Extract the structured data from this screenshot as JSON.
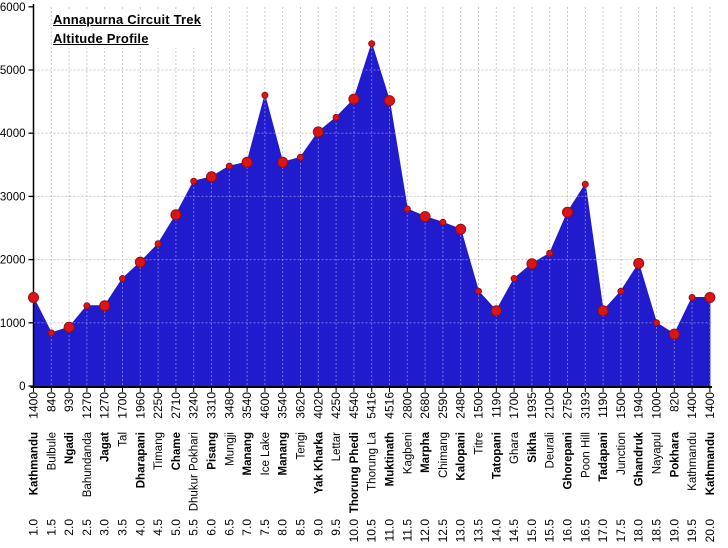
{
  "chart_data": {
    "type": "area",
    "title": "Annapurna Circuit Trek",
    "subtitle": "Altitude Profile",
    "xlabel": "",
    "ylabel": "",
    "x_unit": "days",
    "y_unit": "meters",
    "ylim": [
      0,
      6000
    ],
    "yticks": [
      0,
      1000,
      2000,
      3000,
      4000,
      5000,
      6000
    ],
    "grid": true,
    "legend": "none",
    "area_color": "#211BCE",
    "marker_color": "#DC1414",
    "marker_edge_color": "#9B0D0D",
    "gridline_color": "#C8C8C8",
    "axis_color": "#000000",
    "x_tick_rows": [
      "altitude",
      "place",
      "day"
    ],
    "points": [
      {
        "day": "1.0",
        "place": "Kathmandu",
        "altitude": 1400,
        "stop": true
      },
      {
        "day": "1.5",
        "place": "Bulbule",
        "altitude": 840,
        "stop": false
      },
      {
        "day": "2.0",
        "place": "Ngadi",
        "altitude": 930,
        "stop": true
      },
      {
        "day": "2.5",
        "place": "Bahundanda",
        "altitude": 1270,
        "stop": false
      },
      {
        "day": "3.0",
        "place": "Jagat",
        "altitude": 1270,
        "stop": true
      },
      {
        "day": "3.5",
        "place": "Tal",
        "altitude": 1700,
        "stop": false
      },
      {
        "day": "4.0",
        "place": "Dharapani",
        "altitude": 1960,
        "stop": true
      },
      {
        "day": "4.5",
        "place": "Timang",
        "altitude": 2250,
        "stop": false
      },
      {
        "day": "5.0",
        "place": "Chame",
        "altitude": 2710,
        "stop": true
      },
      {
        "day": "5.5",
        "place": "Dhukur Pokhari",
        "altitude": 3240,
        "stop": false
      },
      {
        "day": "6.0",
        "place": "Pisang",
        "altitude": 3310,
        "stop": true
      },
      {
        "day": "6.5",
        "place": "Mungji",
        "altitude": 3480,
        "stop": false
      },
      {
        "day": "7.0",
        "place": "Manang",
        "altitude": 3540,
        "stop": true
      },
      {
        "day": "7.5",
        "place": "Ice Lake",
        "altitude": 4600,
        "stop": false
      },
      {
        "day": "8.0",
        "place": "Manang",
        "altitude": 3540,
        "stop": true
      },
      {
        "day": "8.5",
        "place": "Tengi",
        "altitude": 3620,
        "stop": false
      },
      {
        "day": "9.0",
        "place": "Yak Kharka",
        "altitude": 4020,
        "stop": true
      },
      {
        "day": "9.5",
        "place": "Lettar",
        "altitude": 4250,
        "stop": false
      },
      {
        "day": "10.0",
        "place": "Thorung Phedi",
        "altitude": 4540,
        "stop": true
      },
      {
        "day": "10.5",
        "place": "Thorung La",
        "altitude": 5416,
        "stop": false
      },
      {
        "day": "11.0",
        "place": "Muktinath",
        "altitude": 4516,
        "stop": true
      },
      {
        "day": "11.5",
        "place": "Kagbeni",
        "altitude": 2800,
        "stop": false
      },
      {
        "day": "12.0",
        "place": "Marpha",
        "altitude": 2680,
        "stop": true
      },
      {
        "day": "12.5",
        "place": "Chimang",
        "altitude": 2590,
        "stop": false
      },
      {
        "day": "13.0",
        "place": "Kalopani",
        "altitude": 2480,
        "stop": true
      },
      {
        "day": "13.5",
        "place": "Titre",
        "altitude": 1500,
        "stop": false
      },
      {
        "day": "14.0",
        "place": "Tatopani",
        "altitude": 1190,
        "stop": true
      },
      {
        "day": "14.5",
        "place": "Ghara",
        "altitude": 1700,
        "stop": false
      },
      {
        "day": "15.0",
        "place": "Sikha",
        "altitude": 1935,
        "stop": true
      },
      {
        "day": "15.5",
        "place": "Deurali",
        "altitude": 2100,
        "stop": false
      },
      {
        "day": "16.0",
        "place": "Ghorepani",
        "altitude": 2750,
        "stop": true
      },
      {
        "day": "16.5",
        "place": "Poon Hill",
        "altitude": 3193,
        "stop": false
      },
      {
        "day": "17.0",
        "place": "Tadapani",
        "altitude": 1190,
        "stop": true
      },
      {
        "day": "17.5",
        "place": "Junction",
        "altitude": 1500,
        "stop": false
      },
      {
        "day": "18.0",
        "place": "Ghandruk",
        "altitude": 1940,
        "stop": true
      },
      {
        "day": "18.5",
        "place": "Nayapul",
        "altitude": 1000,
        "stop": false
      },
      {
        "day": "19.0",
        "place": "Pokhara",
        "altitude": 820,
        "stop": true
      },
      {
        "day": "19.5",
        "place": "Kathmandu",
        "altitude": 1400,
        "stop": false
      },
      {
        "day": "20.0",
        "place": "Kathmandu",
        "altitude": 1400,
        "stop": true
      }
    ]
  }
}
